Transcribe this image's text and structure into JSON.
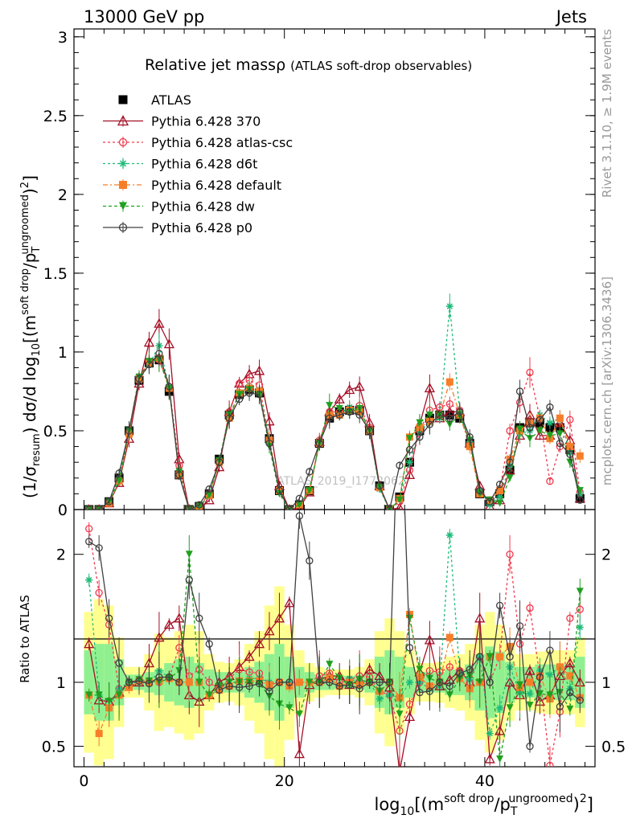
{
  "header": {
    "left": "13000 GeV pp",
    "right": "Jets",
    "side_rivet": "Rivet 3.1.10, ≥ 1.9M events",
    "side_mcplots": "mcplots.cern.ch [arXiv:1306.3436]",
    "watermark": "ATLAS_2019_I1772062"
  },
  "chart_data": [
    {
      "type": "line",
      "title": "Relative jet massρ",
      "subtitle": "(ATLAS soft-drop observables)",
      "ylabel": "(1/σresum) dσ/d log10[(m^{soft drop}/p_T^{ungroomed})^2]",
      "xlabel": "log10[(m^{soft drop}/p_T^{ungroomed})^2]",
      "xlim": [
        -1,
        51
      ],
      "ylim": [
        0,
        3.05
      ],
      "x_ticks": [
        0,
        20,
        40
      ],
      "y_ticks": [
        0,
        0.5,
        1,
        1.5,
        2,
        2.5,
        3
      ],
      "y_tick_labels": [
        "0",
        "0.5",
        "1",
        "1.5",
        "2",
        "2.5",
        "3"
      ],
      "legend_position": "top-left",
      "x": [
        0.5,
        1.5,
        2.5,
        3.5,
        4.5,
        5.5,
        6.5,
        7.5,
        8.5,
        9.5,
        10.5,
        11.5,
        12.5,
        13.5,
        14.5,
        15.5,
        16.5,
        17.5,
        18.5,
        19.5,
        20.5,
        21.5,
        22.5,
        23.5,
        24.5,
        25.5,
        26.5,
        27.5,
        28.5,
        29.5,
        30.5,
        31.5,
        32.5,
        33.5,
        34.5,
        35.5,
        36.5,
        37.5,
        38.5,
        39.5,
        40.5,
        41.5,
        42.5,
        43.5,
        44.5,
        45.5,
        46.5,
        47.5,
        48.5,
        49.5
      ],
      "series": [
        {
          "name": "ATLAS",
          "color": "#000000",
          "marker": "filled-square",
          "dash": "none",
          "values": [
            0.0,
            0.0,
            0.05,
            0.2,
            0.5,
            0.82,
            0.93,
            0.95,
            0.75,
            0.22,
            0.0,
            0.02,
            0.1,
            0.32,
            0.6,
            0.73,
            0.76,
            0.74,
            0.45,
            0.12,
            0.0,
            0.03,
            0.12,
            0.42,
            0.58,
            0.62,
            0.63,
            0.63,
            0.5,
            0.15,
            0.0,
            0.08,
            0.3,
            0.5,
            0.58,
            0.6,
            0.6,
            0.58,
            0.42,
            0.1,
            0.05,
            0.1,
            0.25,
            0.52,
            0.55,
            0.55,
            0.52,
            0.52,
            0.38,
            0.07
          ]
        },
        {
          "name": "Pythia 6.428 370",
          "color": "#a50f26",
          "marker": "open-triangle",
          "dash": "none",
          "values": [
            0.0,
            0.0,
            0.04,
            0.17,
            0.45,
            0.8,
            1.06,
            1.18,
            1.05,
            0.32,
            0.0,
            0.0,
            0.06,
            0.27,
            0.62,
            0.8,
            0.86,
            0.88,
            0.56,
            0.15,
            0.0,
            0.01,
            0.11,
            0.43,
            0.62,
            0.7,
            0.76,
            0.78,
            0.55,
            0.15,
            0.0,
            0.01,
            0.22,
            0.54,
            0.77,
            0.58,
            0.62,
            0.62,
            0.42,
            0.15,
            0.02,
            0.06,
            0.25,
            0.47,
            0.6,
            0.47,
            0.47,
            0.55,
            0.44,
            0.07
          ]
        },
        {
          "name": "Pythia 6.428 atlas-csc",
          "color": "#ee3a4e",
          "marker": "open-circle",
          "dash": "3,3",
          "values": [
            0.0,
            0.0,
            0.05,
            0.19,
            0.5,
            0.84,
            0.94,
            0.95,
            0.78,
            0.28,
            0.0,
            0.02,
            0.1,
            0.3,
            0.62,
            0.8,
            0.82,
            0.79,
            0.44,
            0.12,
            0.0,
            0.03,
            0.12,
            0.44,
            0.62,
            0.62,
            0.64,
            0.66,
            0.52,
            0.14,
            0.0,
            0.05,
            0.25,
            0.5,
            0.63,
            0.65,
            0.67,
            0.63,
            0.42,
            0.12,
            0.05,
            0.12,
            0.5,
            0.68,
            0.87,
            0.58,
            0.18,
            0.4,
            0.57,
            0.11
          ]
        },
        {
          "name": "Pythia 6.428 d6t",
          "color": "#1fbb7a",
          "marker": "star",
          "dash": "3,3",
          "values": [
            0.0,
            0.0,
            0.05,
            0.19,
            0.5,
            0.82,
            0.92,
            1.04,
            0.78,
            0.22,
            0.0,
            0.02,
            0.09,
            0.3,
            0.58,
            0.74,
            0.78,
            0.76,
            0.45,
            0.12,
            0.0,
            0.03,
            0.12,
            0.42,
            0.6,
            0.6,
            0.65,
            0.63,
            0.5,
            0.13,
            0.0,
            0.07,
            0.3,
            0.5,
            0.55,
            0.58,
            1.29,
            0.62,
            0.43,
            0.12,
            0.03,
            0.08,
            0.28,
            0.48,
            0.5,
            0.6,
            0.55,
            0.58,
            0.36,
            0.1
          ]
        },
        {
          "name": "Pythia 6.428 default",
          "color": "#f77e29",
          "marker": "filled-square",
          "dash": "6,3,2,3",
          "values": [
            0.0,
            0.0,
            0.04,
            0.18,
            0.48,
            0.83,
            0.93,
            0.96,
            0.77,
            0.22,
            0.0,
            0.02,
            0.09,
            0.3,
            0.58,
            0.74,
            0.77,
            0.75,
            0.44,
            0.12,
            0.0,
            0.03,
            0.12,
            0.42,
            0.6,
            0.6,
            0.63,
            0.62,
            0.5,
            0.14,
            0.0,
            0.07,
            0.46,
            0.52,
            0.56,
            0.6,
            0.81,
            0.6,
            0.4,
            0.1,
            0.06,
            0.12,
            0.32,
            0.5,
            0.55,
            0.58,
            0.45,
            0.58,
            0.4,
            0.34
          ]
        },
        {
          "name": "Pythia 6.428 dw",
          "color": "#20a020",
          "marker": "filled-triangle-down",
          "dash": "4,3",
          "values": [
            0.0,
            0.0,
            0.05,
            0.18,
            0.5,
            0.84,
            0.94,
            0.95,
            0.77,
            0.24,
            0.0,
            0.02,
            0.09,
            0.31,
            0.6,
            0.73,
            0.76,
            0.73,
            0.4,
            0.1,
            0.0,
            0.03,
            0.12,
            0.42,
            0.66,
            0.64,
            0.62,
            0.64,
            0.5,
            0.14,
            0.0,
            0.06,
            0.45,
            0.55,
            0.6,
            0.6,
            0.54,
            0.6,
            0.44,
            0.1,
            0.06,
            0.04,
            0.2,
            0.51,
            0.45,
            0.5,
            0.47,
            0.48,
            0.3,
            0.12
          ]
        },
        {
          "name": "Pythia 6.428 p0",
          "color": "#404040",
          "marker": "open-circle",
          "dash": "none",
          "values": [
            0.0,
            0.0,
            0.05,
            0.23,
            0.5,
            0.83,
            0.92,
            0.99,
            0.78,
            0.22,
            0.0,
            0.03,
            0.13,
            0.3,
            0.58,
            0.7,
            0.74,
            0.73,
            0.42,
            0.12,
            0.0,
            0.07,
            0.24,
            0.42,
            0.58,
            0.6,
            0.62,
            0.6,
            0.5,
            0.15,
            0.0,
            0.28,
            0.38,
            0.46,
            0.54,
            0.6,
            0.58,
            0.62,
            0.46,
            0.12,
            0.05,
            0.16,
            0.3,
            0.75,
            0.52,
            0.57,
            0.65,
            0.42,
            0.35,
            0.06
          ]
        }
      ]
    },
    {
      "type": "line",
      "ylabel": "Ratio to ATLAS",
      "ylim": [
        0.34,
        2.35
      ],
      "y_ticks": [
        0.5,
        1,
        2
      ],
      "y_tick_labels": [
        "0.5",
        "1",
        "2"
      ],
      "reference": 1,
      "band_inner_color": "#90f090",
      "band_outer_color": "#ffff90",
      "band_inner": [
        0.25,
        0.3,
        0.3,
        0.18,
        0.06,
        0.06,
        0.08,
        0.1,
        0.15,
        0.18,
        0.2,
        0.15,
        0.1,
        0.08,
        0.08,
        0.08,
        0.12,
        0.16,
        0.22,
        0.3,
        0.2,
        0.12,
        0.08,
        0.06,
        0.06,
        0.05,
        0.05,
        0.06,
        0.08,
        0.2,
        0.25,
        0.2,
        0.12,
        0.08,
        0.08,
        0.08,
        0.1,
        0.1,
        0.14,
        0.22,
        0.28,
        0.24,
        0.16,
        0.12,
        0.12,
        0.14,
        0.14,
        0.14,
        0.14,
        0.2
      ],
      "band_outer": [
        0.55,
        0.65,
        0.6,
        0.35,
        0.12,
        0.12,
        0.22,
        0.38,
        0.35,
        0.4,
        0.45,
        0.4,
        0.22,
        0.16,
        0.15,
        0.18,
        0.3,
        0.4,
        0.6,
        0.75,
        0.45,
        0.25,
        0.15,
        0.12,
        0.1,
        0.1,
        0.1,
        0.12,
        0.18,
        0.4,
        0.5,
        0.4,
        0.25,
        0.15,
        0.15,
        0.16,
        0.2,
        0.22,
        0.3,
        0.45,
        0.55,
        0.45,
        0.3,
        0.22,
        0.22,
        0.24,
        0.25,
        0.25,
        0.25,
        0.35
      ],
      "series": [
        {
          "name": "Pythia 6.428 370",
          "values": [
            1.3,
            0.86,
            0.85,
            0.92,
            1.0,
            1.0,
            1.15,
            1.35,
            1.45,
            1.5,
            0.9,
            0.85,
            0.9,
            1.0,
            1.05,
            1.12,
            1.2,
            1.3,
            1.4,
            1.5,
            1.62,
            0.44,
            0.98,
            1.02,
            1.05,
            1.05,
            0.98,
            1.02,
            1.1,
            1.05,
            0.96,
            0.3,
            0.73,
            1.08,
            1.33,
            0.97,
            1.02,
            1.09,
            1.0,
            1.5,
            0.4,
            0.62,
            1.0,
            0.9,
            1.09,
            0.85,
            0.9,
            1.05,
            1.15,
            1.0
          ]
        },
        {
          "name": "Pythia 6.428 atlas-csc",
          "values": [
            2.2,
            1.7,
            1.45,
            0.95,
            1.0,
            1.02,
            1.01,
            1.0,
            1.04,
            1.27,
            1.05,
            1.1,
            1.0,
            0.94,
            1.03,
            1.1,
            1.08,
            1.07,
            0.98,
            1.0,
            1.0,
            1.0,
            1.0,
            1.05,
            1.07,
            1.0,
            1.02,
            1.05,
            1.04,
            0.93,
            0.9,
            0.62,
            0.83,
            1.0,
            1.09,
            1.08,
            1.12,
            1.09,
            1.0,
            1.2,
            1.0,
            1.2,
            2.0,
            1.3,
            1.58,
            1.05,
            0.35,
            0.77,
            1.5,
            1.57
          ]
        },
        {
          "name": "Pythia 6.428 d6t",
          "values": [
            1.8,
            0.9,
            0.8,
            0.95,
            1.0,
            1.0,
            0.99,
            1.09,
            1.04,
            1.0,
            1.0,
            1.0,
            0.9,
            0.94,
            0.97,
            1.01,
            1.03,
            1.03,
            1.0,
            1.0,
            1.0,
            1.0,
            1.0,
            1.0,
            1.03,
            0.97,
            1.03,
            1.0,
            1.0,
            0.87,
            0.9,
            0.88,
            1.0,
            1.0,
            0.95,
            0.97,
            2.15,
            1.07,
            1.02,
            1.2,
            0.6,
            0.8,
            1.12,
            0.92,
            0.91,
            1.09,
            1.06,
            1.12,
            0.95,
            1.43
          ]
        },
        {
          "name": "Pythia 6.428 default",
          "values": [
            0.9,
            0.6,
            0.8,
            0.9,
            0.96,
            1.01,
            1.0,
            1.01,
            1.03,
            1.0,
            1.0,
            1.0,
            0.9,
            0.94,
            0.97,
            1.01,
            1.01,
            1.01,
            0.98,
            1.0,
            0.97,
            1.0,
            1.0,
            1.0,
            1.03,
            0.97,
            1.0,
            0.98,
            1.0,
            0.93,
            1.0,
            0.88,
            1.53,
            1.04,
            0.97,
            1.0,
            1.35,
            1.03,
            0.95,
            1.0,
            1.2,
            1.2,
            1.28,
            0.96,
            1.0,
            1.05,
            0.87,
            1.12,
            1.05,
            0.88
          ]
        },
        {
          "name": "Pythia 6.428 dw",
          "values": [
            0.9,
            0.9,
            0.85,
            0.9,
            1.0,
            1.02,
            1.01,
            1.0,
            1.03,
            1.09,
            2.0,
            1.0,
            0.9,
            0.97,
            1.0,
            1.0,
            1.0,
            0.99,
            0.89,
            0.83,
            0.8,
            0.75,
            1.0,
            1.0,
            1.14,
            1.03,
            0.98,
            1.02,
            1.0,
            0.93,
            1.0,
            0.75,
            1.5,
            1.1,
            1.03,
            1.0,
            0.9,
            1.03,
            1.05,
            1.0,
            1.2,
            0.4,
            0.8,
            0.98,
            0.82,
            0.91,
            0.9,
            0.92,
            0.79,
            1.71
          ]
        },
        {
          "name": "Pythia 6.428 p0",
          "values": [
            2.1,
            2.05,
            1.5,
            1.15,
            1.0,
            1.01,
            0.99,
            1.04,
            1.04,
            1.0,
            1.8,
            1.5,
            1.3,
            0.94,
            0.97,
            0.96,
            0.97,
            0.99,
            0.93,
            1.0,
            1.0,
            2.3,
            1.95,
            1.0,
            1.0,
            0.97,
            0.98,
            0.95,
            1.0,
            1.0,
            1.0,
            3.5,
            1.27,
            0.92,
            0.93,
            1.0,
            0.97,
            1.07,
            1.1,
            1.2,
            1.0,
            1.6,
            1.2,
            1.44,
            0.5,
            1.04,
            1.25,
            0.81,
            0.92,
            0.86
          ]
        }
      ]
    }
  ]
}
